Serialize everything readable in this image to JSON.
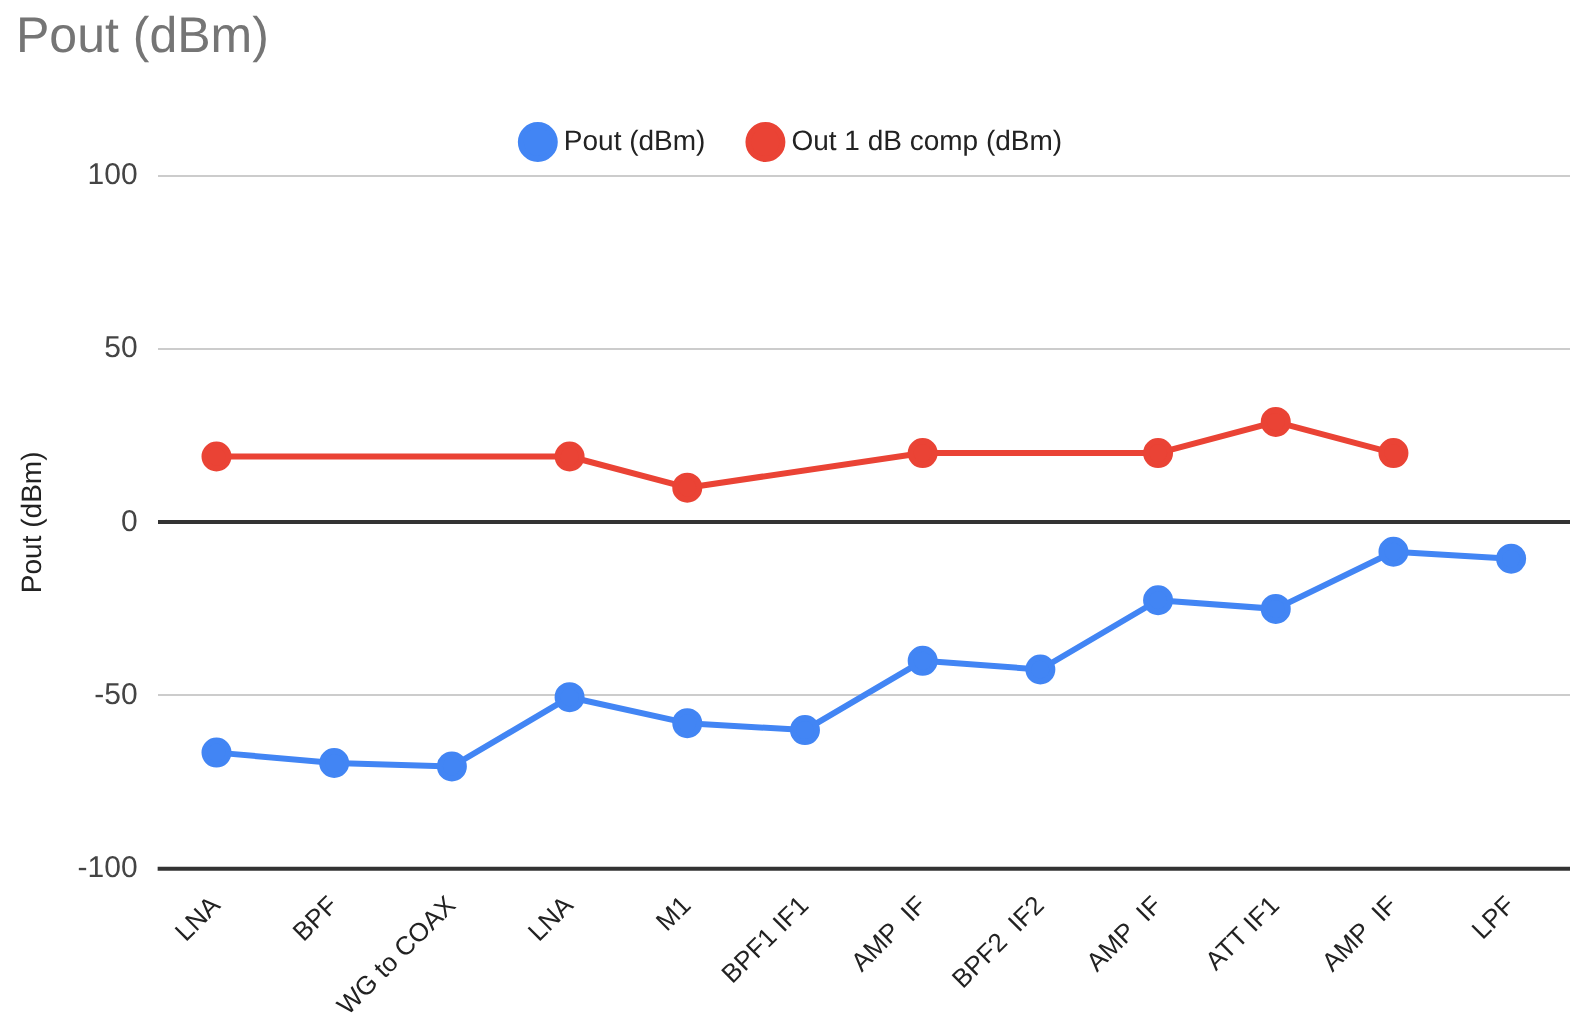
{
  "chart_data": {
    "type": "line",
    "title": "Pout (dBm)",
    "ylabel": "Pout (dBm)",
    "categories": [
      "LNA",
      "BPF",
      "WG to COAX",
      "LNA",
      "M1",
      "BPF1 IF1",
      "AMP  IF",
      "BPF2  IF2",
      "AMP  IF",
      "ATT IF1",
      "AMP  IF",
      "LPF"
    ],
    "series": [
      {
        "name": "Pout (dBm)",
        "color": "#4285f4",
        "values": [
          -66.5,
          -69.5,
          -70.5,
          -50.5,
          -58,
          -60,
          -40,
          -42.5,
          -22.5,
          -25,
          -8.5,
          -10.5
        ]
      },
      {
        "name": "Out 1 dB comp (dBm)",
        "color": "#ea4335",
        "values": [
          19,
          null,
          null,
          19,
          10,
          null,
          20,
          null,
          20,
          29,
          20,
          null
        ]
      }
    ],
    "ylim": [
      -100,
      100
    ],
    "yticks": [
      -100,
      -50,
      0,
      50,
      100
    ],
    "grid": "y",
    "legend": "top",
    "marker": "circle",
    "line_style": "solid"
  }
}
